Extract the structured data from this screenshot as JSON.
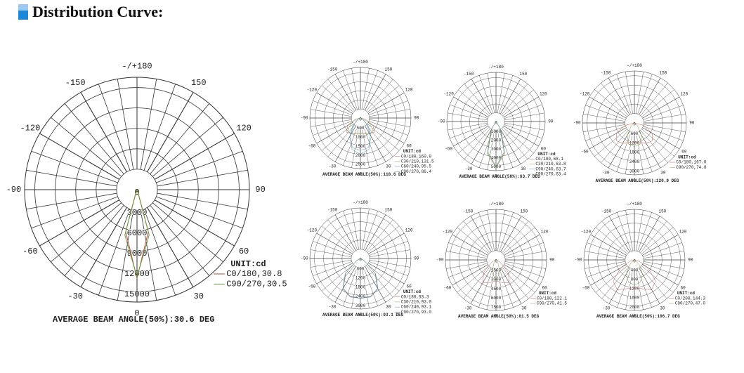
{
  "header": {
    "title": "Distribution Curve:"
  },
  "chart_data": [
    {
      "type": "polar",
      "caption": "AVERAGE BEAM ANGLE(50%):30.6 DEG",
      "unit": "UNIT:cd",
      "angles": [
        -90,
        -75,
        -60,
        -45,
        -30,
        -15,
        0,
        15,
        30,
        45,
        60,
        75,
        90
      ],
      "rlim": [
        0,
        16500
      ],
      "rticks": [
        0,
        3000,
        6000,
        9000,
        12000,
        15000
      ],
      "angle_ticks": [
        {
          "value": 180,
          "label": "-/+180"
        },
        -150,
        150,
        -120,
        120,
        -90,
        90,
        -60,
        60,
        -30,
        30,
        0
      ],
      "series": [
        {
          "name": "C0/180,30.8",
          "color": "#b04848",
          "values": [
            0,
            0,
            0,
            0,
            100,
            6400,
            13000,
            6400,
            100,
            0,
            0,
            0,
            0
          ]
        },
        {
          "name": "C90/270,30.5",
          "color": "#6a9a3a",
          "values": [
            0,
            0,
            0,
            0,
            200,
            6900,
            12800,
            6900,
            200,
            0,
            0,
            0,
            0
          ]
        }
      ]
    },
    {
      "type": "polar",
      "caption": "AVERAGE BEAM ANGLE(50%):118.6 DEG",
      "unit": "UNIT:cd",
      "angles": [
        -90,
        -75,
        -60,
        -45,
        -30,
        -15,
        0,
        15,
        30,
        45,
        60,
        75,
        90
      ],
      "rlim": [
        0,
        2800
      ],
      "rticks": [
        0,
        500,
        1000,
        1500,
        2000,
        2500
      ],
      "angle_ticks": [
        {
          "value": 180,
          "label": "-/+180"
        },
        -150,
        150,
        -120,
        120,
        -90,
        90,
        -60,
        60,
        -30,
        30,
        0
      ],
      "series": [
        {
          "name": "C0/180,160.9",
          "color": "#c05a5a",
          "values": [
            0,
            300,
            800,
            1100,
            1000,
            900,
            850,
            900,
            1000,
            1100,
            800,
            300,
            0
          ]
        },
        {
          "name": "C30/210,131.5",
          "color": "#80a040",
          "values": [
            0,
            200,
            600,
            1000,
            1000,
            900,
            850,
            900,
            1000,
            1000,
            600,
            200,
            0
          ]
        },
        {
          "name": "C60/240,95.5",
          "color": "#5a8ac8",
          "values": [
            0,
            50,
            200,
            600,
            1200,
            1700,
            1800,
            1700,
            1200,
            600,
            200,
            50,
            0
          ]
        },
        {
          "name": "C90/270,86.4",
          "color": "#4a9a8a",
          "values": [
            0,
            50,
            150,
            500,
            1100,
            1800,
            2000,
            1800,
            1100,
            500,
            150,
            50,
            0
          ]
        }
      ]
    },
    {
      "type": "polar",
      "caption": "AVERAGE BEAM ANGLE(50%):63.7 DEG",
      "unit": "UNIT:cd",
      "angles": [
        -90,
        -75,
        -60,
        -45,
        -30,
        -15,
        0,
        15,
        30,
        45,
        60,
        75,
        90
      ],
      "rlim": [
        0,
        5600
      ],
      "rticks": [
        0,
        1000,
        2000,
        3000,
        4000,
        5000
      ],
      "angle_ticks": [
        {
          "value": 180,
          "label": "-/+180"
        },
        -150,
        150,
        -120,
        120,
        -90,
        90,
        -60,
        60,
        -30,
        30,
        0
      ],
      "series": [
        {
          "name": "C0/180,68.1",
          "color": "#c05a5a",
          "values": [
            0,
            0,
            0,
            100,
            1200,
            3800,
            5200,
            3800,
            1200,
            100,
            0,
            0,
            0
          ]
        },
        {
          "name": "C30/210,63.8",
          "color": "#80a040",
          "values": [
            0,
            0,
            0,
            100,
            1100,
            3700,
            5200,
            3700,
            1100,
            100,
            0,
            0,
            0
          ]
        },
        {
          "name": "C90/240,63.7",
          "color": "#5a8ac8",
          "values": [
            0,
            0,
            0,
            80,
            1000,
            3600,
            5100,
            3600,
            1000,
            80,
            0,
            0,
            0
          ]
        },
        {
          "name": "C90/270,63.4",
          "color": "#4a9a8a",
          "values": [
            0,
            0,
            0,
            80,
            1000,
            3600,
            5100,
            3600,
            1000,
            80,
            0,
            0,
            0
          ]
        }
      ]
    },
    {
      "type": "polar",
      "caption": "AVERAGE BEAM ANGLE(50%):120.9 DEG",
      "unit": "UNIT:cd",
      "angles": [
        -90,
        -75,
        -60,
        -45,
        -30,
        -15,
        0,
        15,
        30,
        45,
        60,
        75,
        90
      ],
      "rlim": [
        0,
        3300
      ],
      "rticks": [
        0,
        600,
        1200,
        1800,
        2400,
        3000
      ],
      "angle_ticks": [
        {
          "value": 180,
          "label": "-/+180"
        },
        -150,
        150,
        -120,
        120,
        -90,
        90,
        -60,
        60,
        -30,
        30,
        0
      ],
      "series": [
        {
          "name": "C0/180,167.0",
          "color": "#d05040",
          "values": [
            0,
            600,
            1300,
            1600,
            1500,
            1300,
            1200,
            1300,
            1500,
            1600,
            1300,
            600,
            0
          ]
        },
        {
          "name": "C90/270,74.8",
          "color": "#80a040",
          "values": [
            0,
            0,
            50,
            300,
            900,
            1400,
            1500,
            1400,
            900,
            300,
            50,
            0,
            0
          ]
        }
      ]
    },
    {
      "type": "polar",
      "caption": "AVERAGE BEAM ANGLE(50%):93.1 DEG",
      "unit": "UNIT:cd",
      "angles": [
        -90,
        -75,
        -60,
        -45,
        -30,
        -15,
        0,
        15,
        30,
        45,
        60,
        75,
        90
      ],
      "rlim": [
        0,
        3300
      ],
      "rticks": [
        0,
        600,
        1200,
        1800,
        2400,
        3000
      ],
      "angle_ticks": [
        {
          "value": 180,
          "label": "-/+180"
        },
        -150,
        150,
        -120,
        120,
        -90,
        90,
        -60,
        60,
        -30,
        30,
        0
      ],
      "series": [
        {
          "name": "C0/180,93.3",
          "color": "#c05a5a",
          "values": [
            0,
            50,
            300,
            1400,
            2300,
            2600,
            2600,
            2600,
            2300,
            1400,
            300,
            50,
            0
          ]
        },
        {
          "name": "C30/210,93.0",
          "color": "#80a040",
          "values": [
            0,
            50,
            300,
            1350,
            2250,
            2550,
            2600,
            2550,
            2250,
            1350,
            300,
            50,
            0
          ]
        },
        {
          "name": "C60/240,93.1",
          "color": "#5a8ac8",
          "values": [
            0,
            50,
            300,
            1380,
            2280,
            2580,
            2600,
            2580,
            2280,
            1380,
            300,
            50,
            0
          ]
        },
        {
          "name": "C90/270,93.0",
          "color": "#4a9a8a",
          "values": [
            0,
            50,
            300,
            1350,
            2250,
            2550,
            2600,
            2550,
            2250,
            1350,
            300,
            50,
            0
          ]
        }
      ]
    },
    {
      "type": "polar",
      "caption": "AVERAGE BEAM ANGLE(50%):81.5 DEG",
      "unit": "UNIT:cd",
      "angles": [
        -90,
        -75,
        -60,
        -45,
        -30,
        -15,
        0,
        15,
        30,
        45,
        60,
        75,
        90
      ],
      "rlim": [
        0,
        8200
      ],
      "rticks": [
        0,
        1500,
        3000,
        4500,
        6000,
        7500
      ],
      "angle_ticks": [
        {
          "value": 180,
          "label": "-/+180"
        },
        -150,
        150,
        -120,
        120,
        -90,
        90,
        -60,
        60,
        -30,
        30,
        0
      ],
      "series": [
        {
          "name": "C0/180,122.1",
          "color": "#c05a5a",
          "values": [
            0,
            100,
            800,
            2800,
            4300,
            3800,
            3400,
            3800,
            4300,
            2800,
            800,
            100,
            0
          ]
        },
        {
          "name": "C90/270,41.5",
          "color": "#80a040",
          "values": [
            0,
            0,
            0,
            100,
            800,
            2300,
            3200,
            2300,
            800,
            100,
            0,
            0,
            0
          ]
        }
      ]
    },
    {
      "type": "polar",
      "caption": "AVERAGE BEAM ANGLE(50%):106.7 DEG",
      "unit": "UNIT:cd",
      "angles": [
        -90,
        -75,
        -60,
        -45,
        -30,
        -15,
        0,
        15,
        30,
        45,
        60,
        75,
        90
      ],
      "rlim": [
        0,
        2200
      ],
      "rticks": [
        0,
        400,
        800,
        1200,
        1600,
        2000
      ],
      "angle_ticks": [
        {
          "value": 180,
          "label": "-/+180"
        },
        -150,
        150,
        -120,
        120,
        -90,
        90,
        -60,
        60,
        -30,
        30,
        0
      ],
      "series": [
        {
          "name": "C0/200,144.3",
          "color": "#c05a5a",
          "values": [
            0,
            200,
            700,
            1300,
            1500,
            1300,
            1200,
            1300,
            1500,
            1300,
            700,
            200,
            0
          ]
        },
        {
          "name": "C90/270,47.0",
          "color": "#80a040",
          "values": [
            0,
            0,
            50,
            300,
            700,
            1000,
            1100,
            1000,
            700,
            300,
            50,
            0,
            0
          ]
        }
      ]
    }
  ]
}
